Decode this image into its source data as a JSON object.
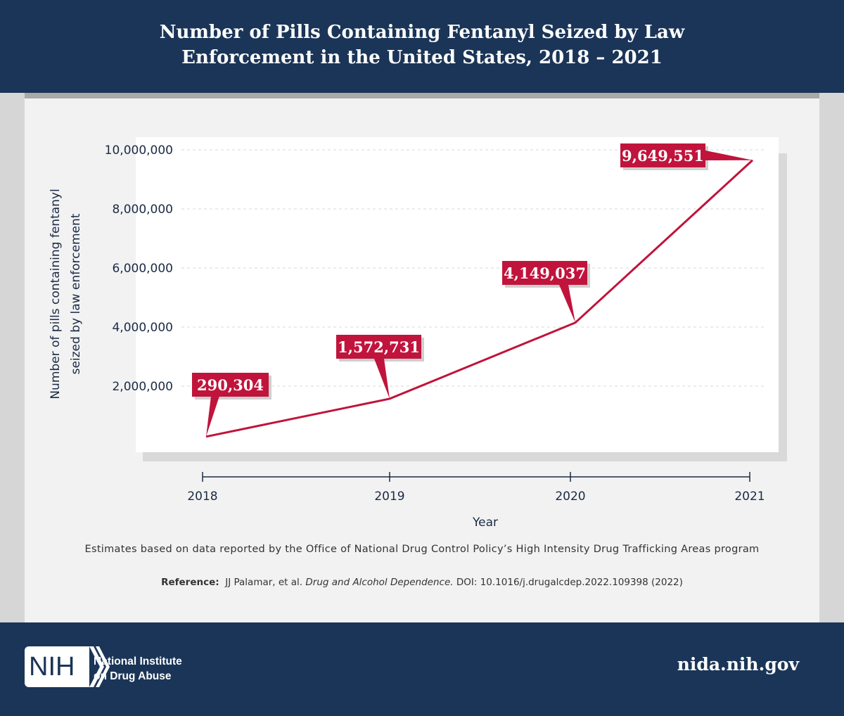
{
  "header": {
    "title": "Number of Pills Containing Fentanyl Seized by Law Enforcement in the United States, 2018 – 2021"
  },
  "chart_data": {
    "type": "line",
    "title": "Number of Pills Containing Fentanyl Seized by Law Enforcement in the United States, 2018 – 2021",
    "xlabel": "Year",
    "ylabel": "Number of pills containing fentanyl seized by law enforcement",
    "categories": [
      "2018",
      "2019",
      "2020",
      "2021"
    ],
    "values": [
      290304,
      1572731,
      4149037,
      9649551
    ],
    "data_labels": [
      "290,304",
      "1,572,731",
      "4,149,037",
      "9,649,551"
    ],
    "yticks": [
      2000000,
      4000000,
      6000000,
      8000000,
      10000000
    ],
    "ytick_labels": [
      "2,000,000",
      "4,000,000",
      "6,000,000",
      "8,000,000",
      "10,000,000"
    ],
    "ylim": [
      0,
      10000000
    ],
    "grid": "horizontal dashed",
    "line_color": "#c0143c"
  },
  "note": "Estimates based on data reported by the Office of National Drug Control Policy’s High Intensity Drug Trafficking Areas program",
  "reference": {
    "label": "Reference:",
    "authors": "JJ Palamar, et al.",
    "journal": "Drug and Alcohol Dependence.",
    "doi": "DOI: 10.1016/j.drugalcdep.2022.109398 (2022)"
  },
  "footer": {
    "logo_text": "NIH",
    "institute_line1": "National Institute",
    "institute_line2": "on Drug Abuse",
    "site": "nida.nih.gov"
  },
  "colors": {
    "navy": "#1a3557",
    "red": "#c0143c"
  }
}
